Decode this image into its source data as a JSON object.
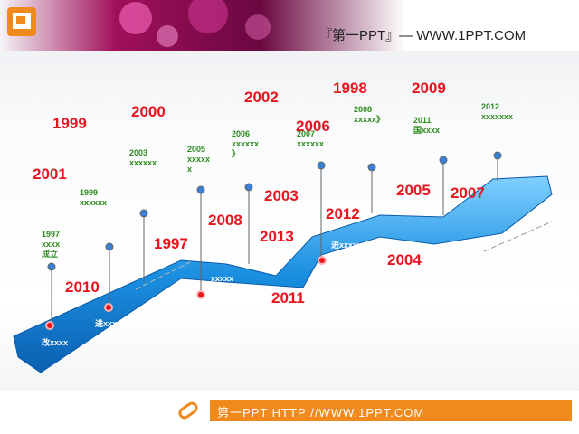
{
  "header": {
    "brand": "『第一PPT』— WWW.1PPT.COM"
  },
  "footer": {
    "url": "第一PPT HTTP://WWW.1PPT.COM"
  },
  "years": [
    "1999",
    "2000",
    "2001",
    "2002",
    "1998",
    "2009",
    "2006",
    "2003",
    "2008",
    "1997",
    "2013",
    "2012",
    "2005",
    "2007",
    "2010",
    "2004",
    "2011"
  ],
  "notes": [
    {
      "lines": [
        "1997",
        "xxxx",
        "成立"
      ]
    },
    {
      "lines": [
        "1999",
        "xxxxxx"
      ]
    },
    {
      "lines": [
        "2003",
        "xxxxxx"
      ]
    },
    {
      "lines": [
        "2005",
        "xxxxx",
        "x"
      ]
    },
    {
      "lines": [
        "2006",
        "xxxxxx",
        "》"
      ]
    },
    {
      "lines": [
        "2007",
        "xxxxxx"
      ]
    },
    {
      "lines": [
        "2008",
        "xxxxx》"
      ]
    },
    {
      "lines": [
        "2011",
        "国xxxx"
      ]
    },
    {
      "lines": [
        "2012",
        "xxxxxxx"
      ]
    }
  ],
  "ribbon_labels": [
    "改xxxx",
    "进xxxxxx",
    "xxxxx",
    "进xxxxxx"
  ]
}
